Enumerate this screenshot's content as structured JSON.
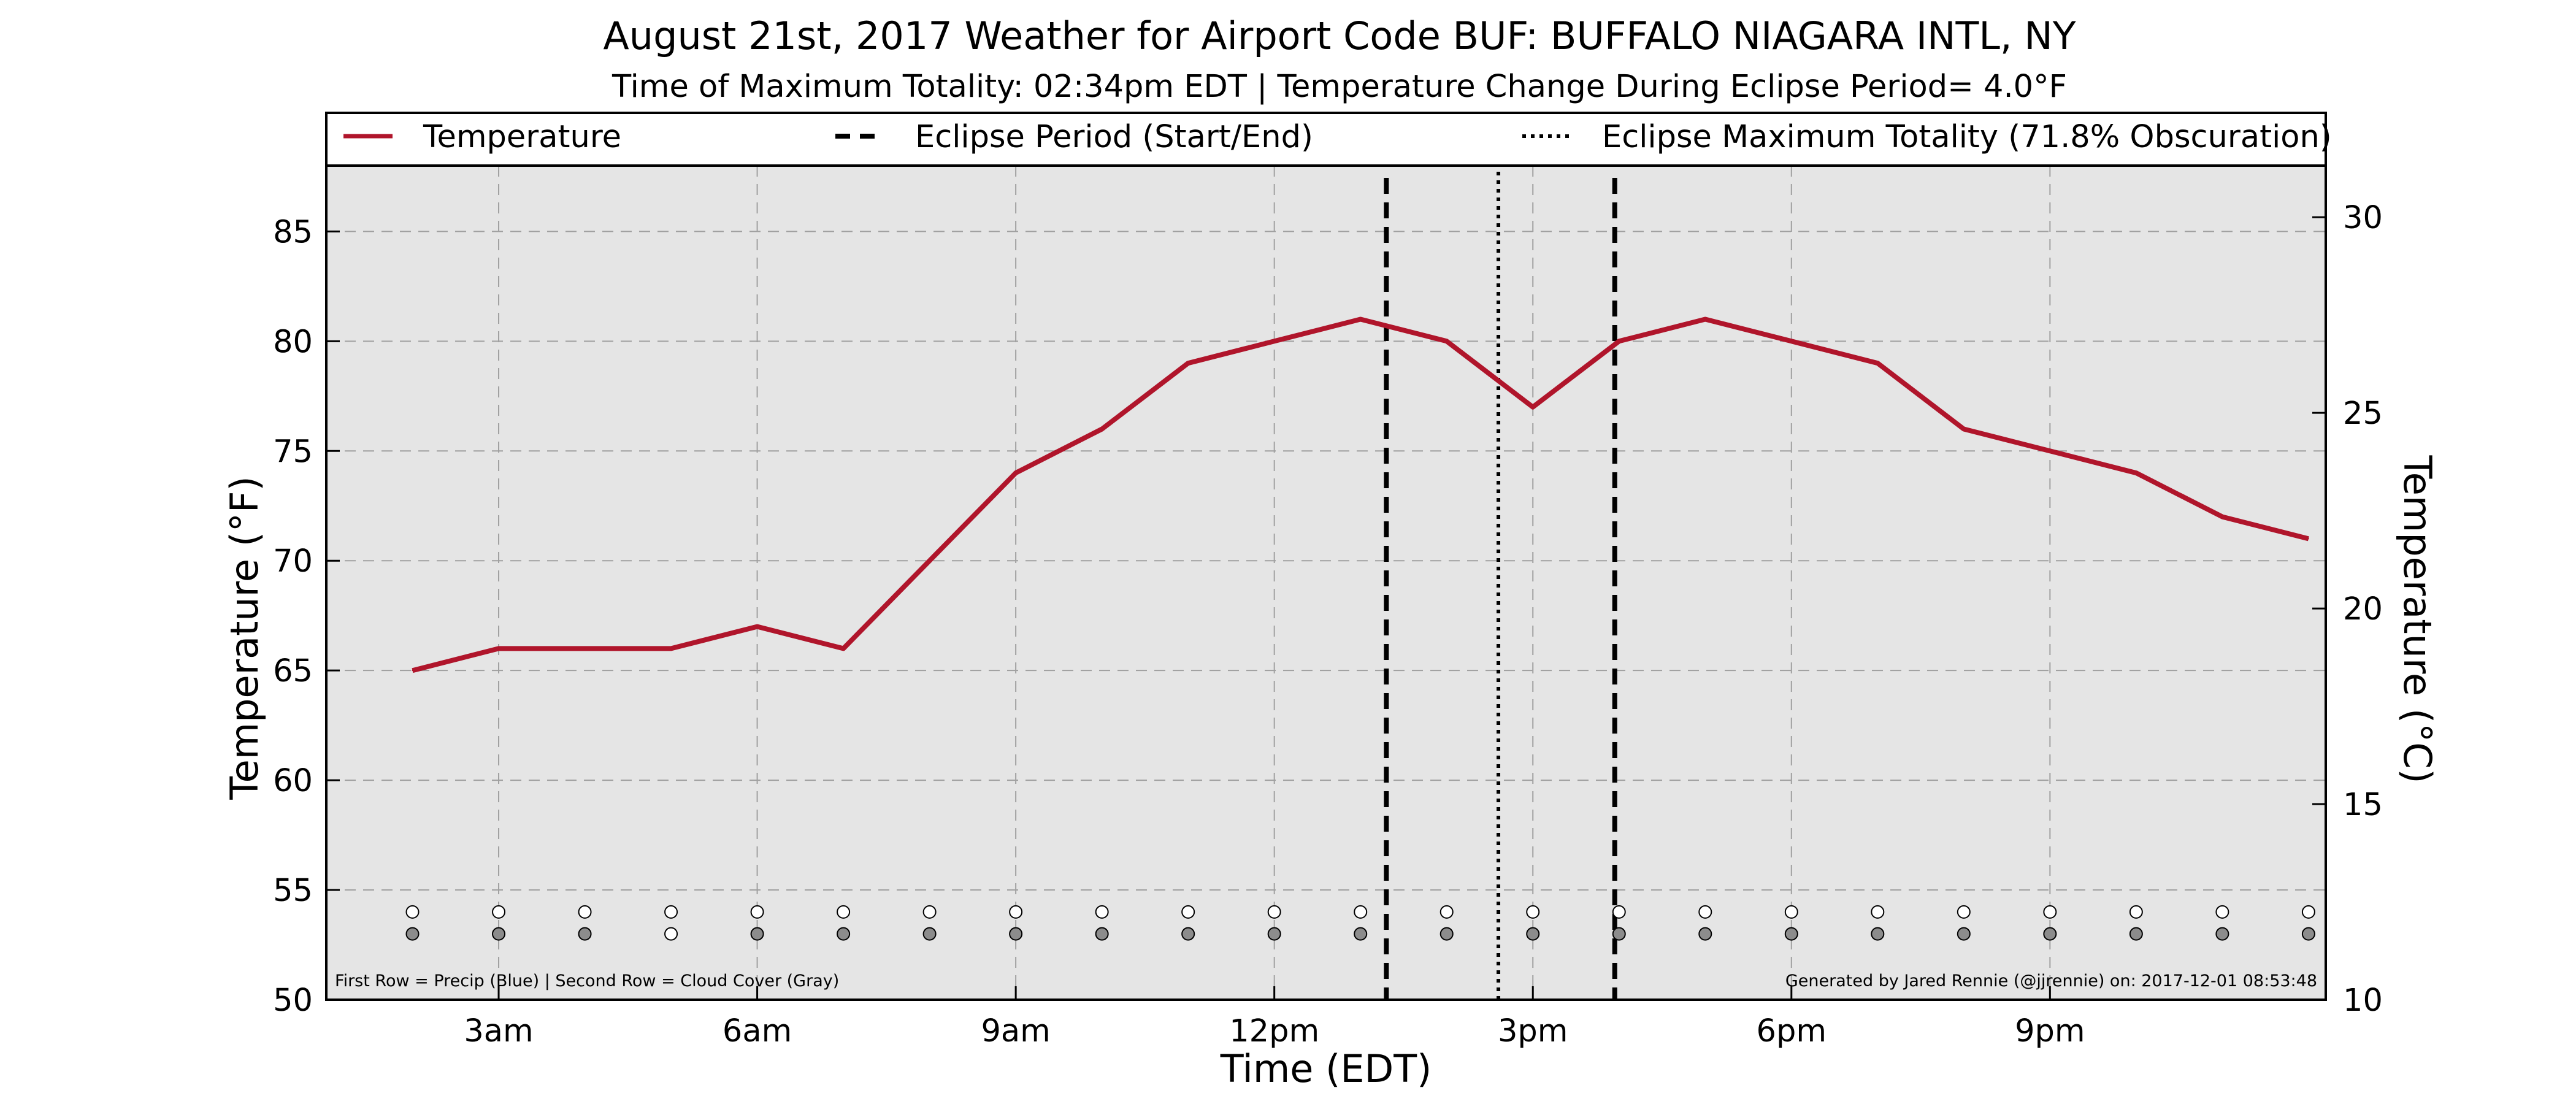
{
  "chart_data": {
    "type": "line",
    "title": "August 21st, 2017 Weather for Airport Code BUF: BUFFALO NIAGARA INTL, NY",
    "subtitle": "Time of Maximum Totality: 02:34pm EDT | Temperature Change During Eclipse Period= 4.0°F",
    "xlabel": "Time (EDT)",
    "ylabel": "Temperature (°F)",
    "ylabel_right": "Temperature (°C)",
    "xlim": [
      1.0,
      24.2
    ],
    "ylim": [
      50,
      88
    ],
    "ylim_right": [
      10,
      31.1
    ],
    "x_ticks": [
      {
        "x": 3,
        "label": "3am"
      },
      {
        "x": 6,
        "label": "6am"
      },
      {
        "x": 9,
        "label": "9am"
      },
      {
        "x": 12,
        "label": "12pm"
      },
      {
        "x": 15,
        "label": "3pm"
      },
      {
        "x": 18,
        "label": "6pm"
      },
      {
        "x": 21,
        "label": "9pm"
      }
    ],
    "y_ticks": [
      50,
      55,
      60,
      65,
      70,
      75,
      80,
      85
    ],
    "y_ticks_right": [
      10,
      15,
      20,
      25,
      30
    ],
    "grid": true,
    "legend_position": "top",
    "legend": [
      {
        "label": "Temperature",
        "style": "solid"
      },
      {
        "label": "Eclipse Period (Start/End)",
        "style": "dashed"
      },
      {
        "label": "Eclipse Maximum Totality (71.8% Obscuration)",
        "style": "dotted"
      }
    ],
    "series": [
      {
        "name": "Temperature",
        "x": [
          2,
          3,
          4,
          5,
          6,
          7,
          8,
          9,
          10,
          11,
          12,
          13,
          14,
          15,
          16,
          17,
          18,
          19,
          20,
          21,
          22,
          23,
          24
        ],
        "values": [
          65,
          66,
          66,
          66,
          67,
          66,
          70,
          74,
          76,
          79,
          80,
          81,
          80,
          77,
          80,
          81,
          80,
          79,
          76,
          75,
          74,
          72,
          71
        ]
      }
    ],
    "eclipse": {
      "start_x": 13.3,
      "end_x": 15.95,
      "max_totality_x": 14.6
    },
    "precip_row": {
      "x": [
        2,
        3,
        4,
        5,
        6,
        7,
        8,
        9,
        10,
        11,
        12,
        13,
        14,
        15,
        16,
        17,
        18,
        19,
        20,
        21,
        22,
        23,
        24
      ],
      "y": 54
    },
    "cloud_row": {
      "x": [
        2,
        3,
        4,
        5,
        6,
        7,
        8,
        9,
        10,
        11,
        12,
        13,
        14,
        15,
        16,
        17,
        18,
        19,
        20,
        21,
        22,
        23,
        24
      ],
      "filled": [
        true,
        true,
        true,
        false,
        true,
        true,
        true,
        true,
        true,
        true,
        true,
        true,
        true,
        true,
        true,
        true,
        true,
        true,
        true,
        true,
        true,
        true,
        true
      ],
      "y": 53
    },
    "footnote_left": "First Row = Precip (Blue) | Second Row = Cloud Cover (Gray)",
    "footnote_right": "Generated by Jared Rennie (@jjrennie) on: 2017-12-01 08:53:48",
    "colors": {
      "line": "#b0152b",
      "plot_bg": "#e5e5e5",
      "grid": "#a0a0a0",
      "cloud_fill": "#8c8c8c",
      "precip_fill": "#ffffff"
    }
  }
}
